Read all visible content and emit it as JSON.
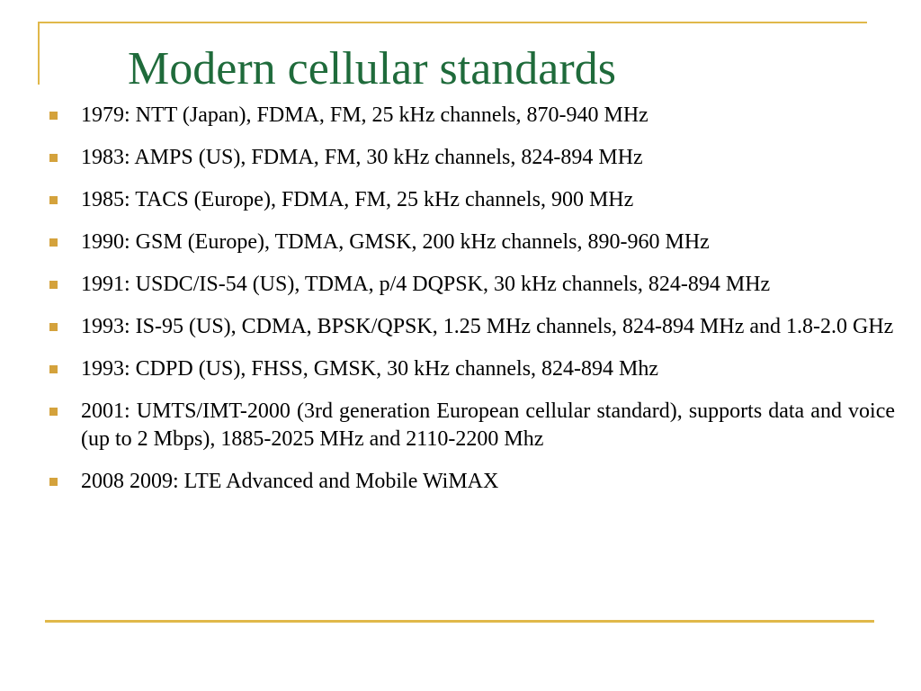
{
  "slide": {
    "title": "Modern cellular standards",
    "title_color": "#1f6b3b",
    "accent_color": "#e0b84a",
    "bullet_color": "#d4a23c",
    "bullets": [
      "1979: NTT (Japan), FDMA, FM, 25 kHz channels, 870-940 MHz",
      "1983: AMPS (US), FDMA, FM, 30 kHz channels, 824-894 MHz",
      "1985: TACS (Europe), FDMA, FM, 25 kHz channels, 900 MHz",
      "1990: GSM (Europe), TDMA, GMSK, 200 kHz channels, 890-960 MHz",
      "1991: USDC/IS-54 (US), TDMA, p/4 DQPSK, 30 kHz channels, 824-894 MHz",
      "1993: IS-95 (US), CDMA, BPSK/QPSK, 1.25 MHz channels, 824-894 MHz and 1.8-2.0 GHz",
      "1993: CDPD (US), FHSS, GMSK, 30 kHz channels, 824-894 Mhz",
      "2001: UMTS/IMT-2000 (3rd generation European cellular standard), supports data and voice (up to 2 Mbps), 1885-2025 MHz and 2110-2200 Mhz",
      "2008 2009: LTE Advanced and Mobile WiMAX"
    ]
  }
}
